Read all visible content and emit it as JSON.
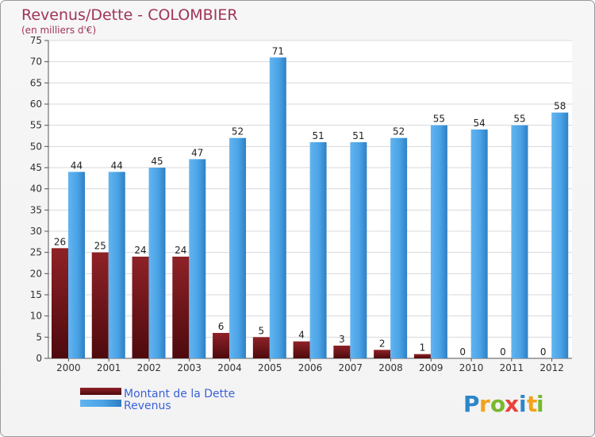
{
  "chart_data": {
    "type": "bar",
    "title": "Revenus/Dette - COLOMBIER",
    "subtitle": "(en milliers d'€)",
    "categories": [
      "2000",
      "2001",
      "2002",
      "2003",
      "2004",
      "2005",
      "2006",
      "2007",
      "2008",
      "2009",
      "2010",
      "2011",
      "2012"
    ],
    "series": [
      {
        "name": "Montant de la Dette",
        "color": "#7a1a1e",
        "values": [
          26,
          25,
          24,
          24,
          6,
          5,
          4,
          3,
          2,
          1,
          0,
          0,
          0
        ]
      },
      {
        "name": "Revenus",
        "color": "#3a93db",
        "values": [
          44,
          44,
          45,
          47,
          52,
          71,
          51,
          51,
          52,
          55,
          54,
          55,
          58
        ]
      }
    ],
    "ylim": [
      0,
      75
    ],
    "yticks": [
      0,
      5,
      10,
      15,
      20,
      25,
      30,
      35,
      40,
      45,
      50,
      55,
      60,
      65,
      70,
      75
    ],
    "grid": true,
    "legend": "bottom-left"
  },
  "logo": {
    "letters": [
      "P",
      "r",
      "o",
      "x",
      "i",
      "t",
      "i"
    ],
    "colors": [
      "#2d86c8",
      "#f2a21b",
      "#7ab82e",
      "#e9423a",
      "#2d86c8",
      "#f2a21b",
      "#7ab82e"
    ]
  }
}
